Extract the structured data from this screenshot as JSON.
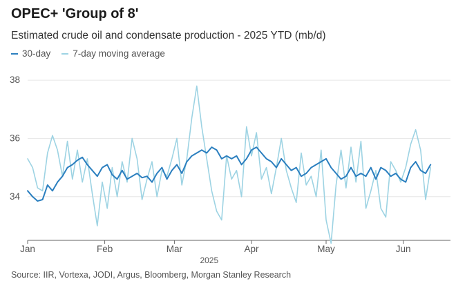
{
  "title": "OPEC+ 'Group of 8'",
  "subtitle": "Estimated crude oil and condensate production - 2025 YTD (mb/d)",
  "source": "Source: IIR, Vortexa, JODI, Argus, Bloomberg, Morgan Stanley Research",
  "colors": {
    "line_30d": "#2b7fbf",
    "line_7d": "#9dd3e3",
    "grid": "#e6e6e6",
    "axis": "#666666",
    "tick_text": "#555555"
  },
  "chart_data": {
    "type": "line",
    "title": "OPEC+ 'Group of 8'",
    "subtitle": "Estimated crude oil and condensate production - 2025 YTD (mb/d)",
    "xlabel": "2025",
    "ylabel": "",
    "x_unit": "day of year 2025 (1 = Jan 1)",
    "xlim": [
      1,
      171
    ],
    "ylim": [
      32.5,
      38.5
    ],
    "y_ticks": [
      34,
      36,
      38
    ],
    "x_ticks": [
      {
        "day": 1,
        "label": "Jan"
      },
      {
        "day": 32,
        "label": "Feb"
      },
      {
        "day": 60,
        "label": "Mar"
      },
      {
        "day": 91,
        "label": "Apr"
      },
      {
        "day": 121,
        "label": "May"
      },
      {
        "day": 152,
        "label": "Jun"
      }
    ],
    "grid": true,
    "legend_position": "top-left",
    "series": [
      {
        "name": "30-day",
        "color": "#2b7fbf",
        "x": [
          1,
          3,
          5,
          7,
          9,
          11,
          13,
          15,
          17,
          19,
          21,
          23,
          25,
          27,
          29,
          31,
          33,
          35,
          37,
          39,
          41,
          43,
          45,
          47,
          49,
          51,
          53,
          55,
          57,
          59,
          61,
          63,
          65,
          67,
          69,
          71,
          73,
          75,
          77,
          79,
          81,
          83,
          85,
          87,
          89,
          91,
          93,
          95,
          97,
          99,
          101,
          103,
          105,
          107,
          109,
          111,
          113,
          115,
          117,
          119,
          121,
          123,
          125,
          127,
          129,
          131,
          133,
          135,
          137,
          139,
          141,
          143,
          145,
          147,
          149,
          151,
          153,
          155,
          157,
          159,
          161,
          163
        ],
        "y": [
          34.2,
          34.0,
          33.85,
          33.9,
          34.4,
          34.2,
          34.5,
          34.7,
          35.0,
          35.1,
          35.25,
          35.35,
          35.1,
          34.9,
          34.7,
          35.0,
          35.1,
          34.75,
          34.6,
          34.9,
          34.6,
          34.7,
          34.8,
          34.65,
          34.7,
          34.5,
          34.8,
          35.0,
          34.6,
          34.9,
          35.1,
          34.8,
          35.2,
          35.4,
          35.5,
          35.6,
          35.5,
          35.7,
          35.6,
          35.3,
          35.4,
          35.3,
          35.4,
          35.1,
          35.3,
          35.6,
          35.7,
          35.5,
          35.3,
          35.2,
          35.0,
          35.3,
          35.1,
          34.9,
          35.0,
          34.7,
          34.8,
          35.0,
          35.1,
          35.2,
          35.3,
          35.0,
          34.8,
          34.6,
          34.7,
          35.0,
          34.7,
          34.8,
          34.7,
          35.0,
          34.6,
          35.0,
          34.9,
          34.7,
          34.8,
          34.6,
          34.5,
          35.0,
          35.2,
          34.9,
          34.8,
          35.1
        ]
      },
      {
        "name": "7-day moving average",
        "color": "#9dd3e3",
        "x": [
          1,
          3,
          5,
          7,
          9,
          11,
          13,
          15,
          17,
          19,
          21,
          23,
          25,
          27,
          29,
          31,
          33,
          35,
          37,
          39,
          41,
          43,
          45,
          47,
          49,
          51,
          53,
          55,
          57,
          59,
          61,
          63,
          65,
          67,
          69,
          71,
          73,
          75,
          77,
          79,
          81,
          83,
          85,
          87,
          89,
          91,
          93,
          95,
          97,
          99,
          101,
          103,
          105,
          107,
          109,
          111,
          113,
          115,
          117,
          119,
          121,
          123,
          125,
          127,
          129,
          131,
          133,
          135,
          137,
          139,
          141,
          143,
          145,
          147,
          149,
          151,
          153,
          155,
          157,
          159,
          161,
          163
        ],
        "y": [
          35.3,
          35.0,
          34.3,
          34.2,
          35.5,
          36.1,
          35.6,
          34.7,
          35.9,
          34.6,
          35.6,
          34.5,
          35.3,
          34.1,
          33.0,
          34.5,
          33.6,
          35.0,
          34.0,
          35.2,
          34.5,
          36.0,
          35.3,
          33.9,
          34.6,
          35.2,
          34.0,
          34.9,
          34.7,
          35.3,
          36.0,
          34.4,
          35.3,
          36.7,
          37.8,
          36.4,
          35.3,
          34.2,
          33.5,
          33.2,
          35.4,
          34.6,
          34.9,
          34.0,
          36.4,
          35.4,
          36.2,
          34.6,
          35.0,
          34.1,
          35.0,
          36.0,
          34.9,
          34.3,
          33.8,
          35.5,
          34.4,
          34.7,
          34.0,
          35.6,
          33.2,
          32.4,
          34.4,
          35.6,
          34.3,
          35.7,
          34.5,
          35.9,
          33.6,
          34.2,
          34.9,
          33.6,
          33.3,
          35.2,
          34.9,
          34.5,
          35.0,
          35.8,
          36.3,
          35.6,
          33.9,
          35.0
        ]
      }
    ]
  }
}
